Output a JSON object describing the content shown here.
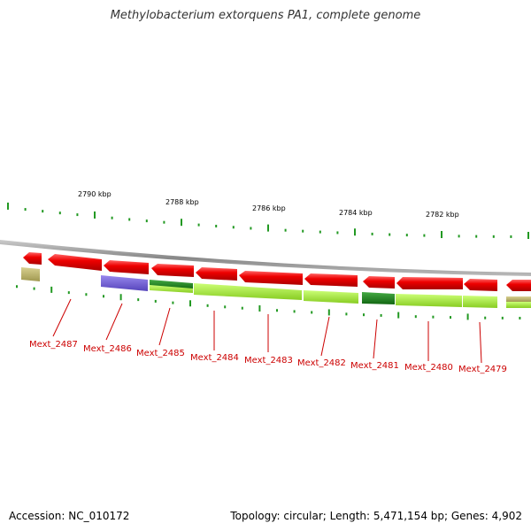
{
  "title": "Methylobacterium extorquens PA1, complete genome",
  "footer": {
    "accession": "Accession: NC_010172",
    "summary": "Topology: circular; Length: 5,471,154 bp; Genes: 4,902"
  },
  "ruler_labels": [
    "2790 kbp",
    "2788 kbp",
    "2786 kbp",
    "2784 kbp",
    "2782 kbp"
  ],
  "gene_labels": [
    "Mext_2487",
    "Mext_2486",
    "Mext_2485",
    "Mext_2484",
    "Mext_2483",
    "Mext_2482",
    "Mext_2481",
    "Mext_2480",
    "Mext_2479"
  ],
  "colors": {
    "forward_strand": "#ee0000",
    "cog_olive": "#b8b070",
    "cog_purple": "#7766dd",
    "cog_dark_green": "#1e8a1e",
    "cog_light_green": "#aaee44",
    "ticks": "#229922",
    "backbone": "#888888"
  }
}
